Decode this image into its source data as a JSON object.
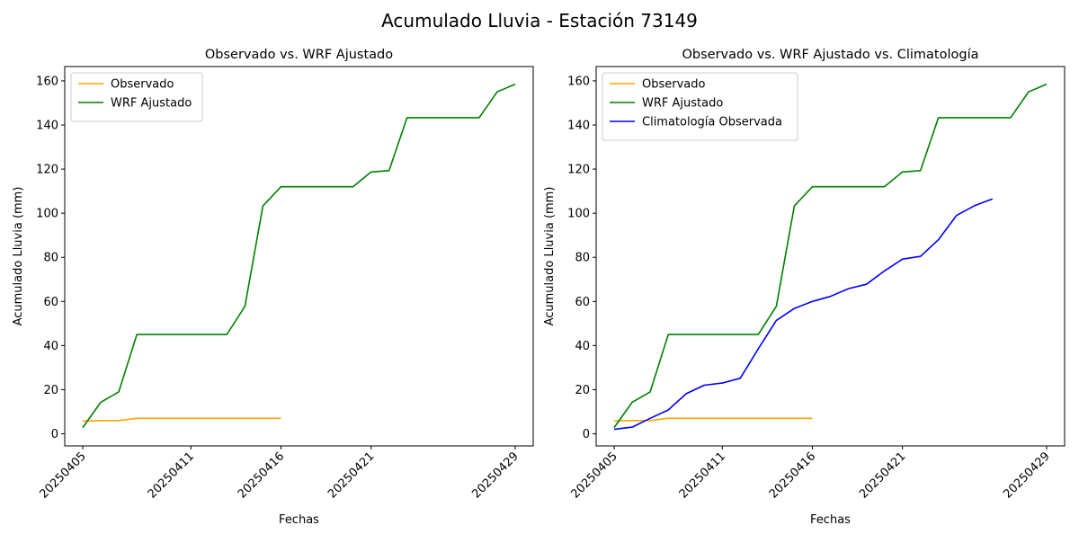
{
  "figure_title": "Acumulado Lluvia - Estación 73149",
  "colors": {
    "observado": "#FFA500",
    "wrf": "#008000",
    "clima": "#0000FF"
  },
  "chart_data": [
    {
      "type": "line",
      "title": "Observado vs. WRF Ajustado",
      "xlabel": "Fechas",
      "ylabel": "Acumulado Lluvia (mm)",
      "x": [
        "20250405",
        "20250406",
        "20250407",
        "20250408",
        "20250409",
        "20250410",
        "20250411",
        "20250412",
        "20250413",
        "20250414",
        "20250415",
        "20250416",
        "20250417",
        "20250418",
        "20250419",
        "20250420",
        "20250421",
        "20250422",
        "20250423",
        "20250424",
        "20250425",
        "20250426",
        "20250427",
        "20250428",
        "20250429"
      ],
      "xticks": [
        "20250405",
        "20250411",
        "20250416",
        "20250421",
        "20250429"
      ],
      "xlim": [
        "20250404",
        "20250430"
      ],
      "yticks": [
        0,
        20,
        40,
        60,
        80,
        100,
        120,
        140,
        160
      ],
      "ylim": [
        -5.5,
        166.5
      ],
      "legend": "top-left",
      "series": [
        {
          "name": "Observado",
          "color": "#FFA500",
          "values": [
            5.8,
            6.0,
            6.0,
            7.0,
            7.0,
            7.0,
            7.0,
            7.0,
            7.0,
            7.0,
            7.0,
            7.0,
            null,
            null,
            null,
            null,
            null,
            null,
            null,
            null,
            null,
            null,
            null,
            null,
            null
          ]
        },
        {
          "name": "WRF Ajustado",
          "color": "#008000",
          "values": [
            2.8,
            14.3,
            19.0,
            45.0,
            45.0,
            45.0,
            45.0,
            45.0,
            45.0,
            57.8,
            103.3,
            112.0,
            112.0,
            112.0,
            112.0,
            112.0,
            118.7,
            119.3,
            143.3,
            143.3,
            143.3,
            143.3,
            143.3,
            155.0,
            158.5
          ]
        }
      ]
    },
    {
      "type": "line",
      "title": "Observado vs. WRF Ajustado vs. Climatología",
      "xlabel": "Fechas",
      "ylabel": "Acumulado Lluvia (mm)",
      "x": [
        "20250405",
        "20250406",
        "20250407",
        "20250408",
        "20250409",
        "20250410",
        "20250411",
        "20250412",
        "20250413",
        "20250414",
        "20250415",
        "20250416",
        "20250417",
        "20250418",
        "20250419",
        "20250420",
        "20250421",
        "20250422",
        "20250423",
        "20250424",
        "20250425",
        "20250426",
        "20250427",
        "20250428",
        "20250429"
      ],
      "xticks": [
        "20250405",
        "20250411",
        "20250416",
        "20250421",
        "20250429"
      ],
      "xlim": [
        "20250404",
        "20250430"
      ],
      "yticks": [
        0,
        20,
        40,
        60,
        80,
        100,
        120,
        140,
        160
      ],
      "ylim": [
        -5.5,
        166.5
      ],
      "legend": "top-left",
      "series": [
        {
          "name": "Observado",
          "color": "#FFA500",
          "values": [
            5.8,
            6.0,
            6.0,
            7.0,
            7.0,
            7.0,
            7.0,
            7.0,
            7.0,
            7.0,
            7.0,
            7.0,
            null,
            null,
            null,
            null,
            null,
            null,
            null,
            null,
            null,
            null,
            null,
            null,
            null
          ]
        },
        {
          "name": "WRF Ajustado",
          "color": "#008000",
          "values": [
            2.8,
            14.3,
            19.0,
            45.0,
            45.0,
            45.0,
            45.0,
            45.0,
            45.0,
            57.8,
            103.3,
            112.0,
            112.0,
            112.0,
            112.0,
            112.0,
            118.7,
            119.3,
            143.3,
            143.3,
            143.3,
            143.3,
            143.3,
            155.0,
            158.5
          ]
        },
        {
          "name": "Climatología Observada",
          "color": "#0000FF",
          "values": [
            2.0,
            3.0,
            7.0,
            10.8,
            18.2,
            22.0,
            23.0,
            25.2,
            38.5,
            51.4,
            56.8,
            60.0,
            62.3,
            65.8,
            67.8,
            73.8,
            79.2,
            80.4,
            88.0,
            99.0,
            103.4,
            106.5,
            null,
            null,
            null
          ]
        }
      ]
    }
  ]
}
